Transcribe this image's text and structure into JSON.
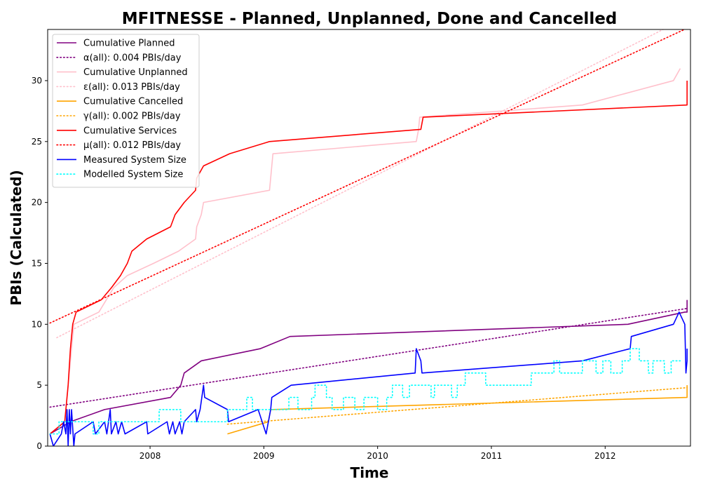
{
  "chart_data": {
    "type": "line",
    "title": "MFITNESSE - Planned, Unplanned, Done  and Cancelled",
    "xlabel": "Time",
    "ylabel": "PBIs (Calculated)",
    "xlim": [
      2007.1,
      2012.75
    ],
    "ylim": [
      0,
      34.2
    ],
    "x_ticks": [
      {
        "value": 2008,
        "label": "2008"
      },
      {
        "value": 2009,
        "label": "2009"
      },
      {
        "value": 2010,
        "label": "2010"
      },
      {
        "value": 2011,
        "label": "2011"
      },
      {
        "value": 2012,
        "label": "2012"
      }
    ],
    "y_ticks": [
      {
        "value": 0,
        "label": "0"
      },
      {
        "value": 5,
        "label": "5"
      },
      {
        "value": 10,
        "label": "10"
      },
      {
        "value": 15,
        "label": "15"
      },
      {
        "value": 20,
        "label": "20"
      },
      {
        "value": 25,
        "label": "25"
      },
      {
        "value": 30,
        "label": "30"
      }
    ],
    "grid": false,
    "legend_position": "top-left",
    "series": [
      {
        "name": "Cumulative Planned",
        "color": "#800080",
        "style": "solid",
        "points": [
          [
            2007.12,
            1
          ],
          [
            2007.3,
            2
          ],
          [
            2007.6,
            3
          ],
          [
            2008.18,
            4
          ],
          [
            2008.27,
            5
          ],
          [
            2008.3,
            6
          ],
          [
            2008.45,
            7
          ],
          [
            2008.97,
            8
          ],
          [
            2009.23,
            9
          ],
          [
            2012.2,
            10
          ],
          [
            2012.7,
            11
          ],
          [
            2012.72,
            11
          ],
          [
            2012.72,
            12
          ]
        ]
      },
      {
        "name": "α(all): 0.004 PBIs/day",
        "color": "#800080",
        "style": "dotted",
        "points": [
          [
            2007.12,
            3.2
          ],
          [
            2012.72,
            11.3
          ]
        ]
      },
      {
        "name": "Cumulative Unplanned",
        "color": "#ffc0cb",
        "style": "solid",
        "points": [
          [
            2007.12,
            1
          ],
          [
            2007.25,
            2
          ],
          [
            2007.3,
            7
          ],
          [
            2007.33,
            10
          ],
          [
            2007.55,
            11
          ],
          [
            2007.68,
            13
          ],
          [
            2007.8,
            14
          ],
          [
            2008.03,
            15
          ],
          [
            2008.25,
            16
          ],
          [
            2008.4,
            17
          ],
          [
            2008.41,
            18
          ],
          [
            2008.45,
            19
          ],
          [
            2008.47,
            20
          ],
          [
            2009.05,
            21
          ],
          [
            2009.06,
            22
          ],
          [
            2009.07,
            23
          ],
          [
            2009.08,
            24
          ],
          [
            2010.34,
            25
          ],
          [
            2010.36,
            26
          ],
          [
            2010.37,
            27
          ],
          [
            2011.8,
            28
          ],
          [
            2012.6,
            30
          ],
          [
            2012.66,
            31
          ]
        ]
      },
      {
        "name": "ε(all): 0.013 PBIs/day",
        "color": "#ffc0cb",
        "style": "dotted",
        "points": [
          [
            2007.18,
            8.9
          ],
          [
            2012.72,
            35.2
          ]
        ]
      },
      {
        "name": "Cumulative Cancelled",
        "color": "#ffa500",
        "style": "solid",
        "points": [
          [
            2008.68,
            1
          ],
          [
            2009.04,
            2
          ],
          [
            2009.06,
            3
          ],
          [
            2012.72,
            4
          ],
          [
            2012.72,
            5
          ]
        ]
      },
      {
        "name": "γ(all): 0.002 PBIs/day",
        "color": "#ffa500",
        "style": "dotted",
        "points": [
          [
            2008.68,
            1.8
          ],
          [
            2012.72,
            4.8
          ]
        ]
      },
      {
        "name": "Cumulative Services",
        "color": "#ff0000",
        "style": "solid",
        "points": [
          [
            2007.12,
            1
          ],
          [
            2007.25,
            2
          ],
          [
            2007.28,
            5
          ],
          [
            2007.3,
            8
          ],
          [
            2007.32,
            10
          ],
          [
            2007.35,
            11
          ],
          [
            2007.57,
            12
          ],
          [
            2007.66,
            13
          ],
          [
            2007.74,
            14
          ],
          [
            2007.8,
            15
          ],
          [
            2007.84,
            16
          ],
          [
            2007.97,
            17
          ],
          [
            2008.18,
            18
          ],
          [
            2008.22,
            19
          ],
          [
            2008.3,
            20
          ],
          [
            2008.4,
            21
          ],
          [
            2008.41,
            22
          ],
          [
            2008.47,
            23
          ],
          [
            2008.7,
            24
          ],
          [
            2009.05,
            25
          ],
          [
            2010.38,
            26
          ],
          [
            2010.4,
            27
          ],
          [
            2012.72,
            28
          ],
          [
            2012.72,
            30
          ]
        ]
      },
      {
        "name": "μ(all): 0.012 PBIs/day",
        "color": "#ff0000",
        "style": "dotted",
        "points": [
          [
            2007.12,
            10.1
          ],
          [
            2012.72,
            34.3
          ]
        ]
      },
      {
        "name": "Measured System Size",
        "color": "#0000ff",
        "style": "solid",
        "points": [
          [
            2007.12,
            1
          ],
          [
            2007.15,
            0
          ],
          [
            2007.22,
            1
          ],
          [
            2007.24,
            2
          ],
          [
            2007.26,
            1
          ],
          [
            2007.27,
            3
          ],
          [
            2007.28,
            0
          ],
          [
            2007.29,
            3
          ],
          [
            2007.3,
            1
          ],
          [
            2007.31,
            3
          ],
          [
            2007.33,
            0
          ],
          [
            2007.34,
            1
          ],
          [
            2007.5,
            2
          ],
          [
            2007.52,
            1
          ],
          [
            2007.6,
            2
          ],
          [
            2007.62,
            1
          ],
          [
            2007.65,
            3
          ],
          [
            2007.66,
            1
          ],
          [
            2007.7,
            2
          ],
          [
            2007.72,
            1
          ],
          [
            2007.75,
            2
          ],
          [
            2007.78,
            1
          ],
          [
            2007.97,
            2
          ],
          [
            2007.98,
            1
          ],
          [
            2008.15,
            2
          ],
          [
            2008.17,
            1
          ],
          [
            2008.2,
            2
          ],
          [
            2008.22,
            1
          ],
          [
            2008.26,
            2
          ],
          [
            2008.28,
            1
          ],
          [
            2008.3,
            2
          ],
          [
            2008.4,
            3
          ],
          [
            2008.41,
            2
          ],
          [
            2008.44,
            3
          ],
          [
            2008.47,
            5
          ],
          [
            2008.48,
            4
          ],
          [
            2008.68,
            3
          ],
          [
            2008.69,
            2
          ],
          [
            2008.95,
            3
          ],
          [
            2009.02,
            1
          ],
          [
            2009.06,
            3
          ],
          [
            2009.07,
            4
          ],
          [
            2009.24,
            5
          ],
          [
            2010.33,
            6
          ],
          [
            2010.34,
            8
          ],
          [
            2010.38,
            7
          ],
          [
            2010.39,
            6
          ],
          [
            2011.8,
            7
          ],
          [
            2012.22,
            8
          ],
          [
            2012.23,
            9
          ],
          [
            2012.6,
            10
          ],
          [
            2012.65,
            11
          ],
          [
            2012.7,
            10
          ],
          [
            2012.71,
            6
          ],
          [
            2012.72,
            7
          ],
          [
            2012.72,
            8
          ]
        ]
      },
      {
        "name": "Modelled System Size",
        "color": "#00ffff",
        "style": "dotted",
        "points": [
          [
            2007.12,
            1
          ],
          [
            2007.2,
            1
          ],
          [
            2007.2,
            2
          ],
          [
            2007.5,
            2
          ],
          [
            2007.5,
            1
          ],
          [
            2007.55,
            1
          ],
          [
            2007.55,
            2
          ],
          [
            2008.08,
            2
          ],
          [
            2008.08,
            3
          ],
          [
            2008.27,
            3
          ],
          [
            2008.27,
            2
          ],
          [
            2008.68,
            2
          ],
          [
            2008.68,
            3
          ],
          [
            2008.85,
            3
          ],
          [
            2008.85,
            4
          ],
          [
            2008.9,
            4
          ],
          [
            2008.9,
            3
          ],
          [
            2009.22,
            3
          ],
          [
            2009.22,
            4
          ],
          [
            2009.3,
            4
          ],
          [
            2009.3,
            3
          ],
          [
            2009.42,
            3
          ],
          [
            2009.42,
            4
          ],
          [
            2009.45,
            4
          ],
          [
            2009.45,
            5
          ],
          [
            2009.55,
            5
          ],
          [
            2009.55,
            4
          ],
          [
            2009.6,
            4
          ],
          [
            2009.6,
            3
          ],
          [
            2009.7,
            3
          ],
          [
            2009.7,
            4
          ],
          [
            2009.8,
            4
          ],
          [
            2009.8,
            3
          ],
          [
            2009.88,
            3
          ],
          [
            2009.88,
            4
          ],
          [
            2010.0,
            4
          ],
          [
            2010.0,
            3
          ],
          [
            2010.08,
            3
          ],
          [
            2010.08,
            4
          ],
          [
            2010.13,
            4
          ],
          [
            2010.13,
            5
          ],
          [
            2010.22,
            5
          ],
          [
            2010.22,
            4
          ],
          [
            2010.28,
            4
          ],
          [
            2010.28,
            5
          ],
          [
            2010.47,
            5
          ],
          [
            2010.47,
            4
          ],
          [
            2010.5,
            4
          ],
          [
            2010.5,
            5
          ],
          [
            2010.65,
            5
          ],
          [
            2010.65,
            4
          ],
          [
            2010.7,
            4
          ],
          [
            2010.7,
            5
          ],
          [
            2010.77,
            5
          ],
          [
            2010.77,
            6
          ],
          [
            2010.95,
            6
          ],
          [
            2010.95,
            5
          ],
          [
            2011.35,
            5
          ],
          [
            2011.35,
            6
          ],
          [
            2011.55,
            6
          ],
          [
            2011.55,
            7
          ],
          [
            2011.6,
            7
          ],
          [
            2011.6,
            6
          ],
          [
            2011.8,
            6
          ],
          [
            2011.8,
            7
          ],
          [
            2011.92,
            7
          ],
          [
            2011.92,
            6
          ],
          [
            2011.98,
            6
          ],
          [
            2011.98,
            7
          ],
          [
            2012.05,
            7
          ],
          [
            2012.05,
            6
          ],
          [
            2012.15,
            6
          ],
          [
            2012.15,
            7
          ],
          [
            2012.22,
            7
          ],
          [
            2012.22,
            8
          ],
          [
            2012.3,
            8
          ],
          [
            2012.3,
            7
          ],
          [
            2012.38,
            7
          ],
          [
            2012.38,
            6
          ],
          [
            2012.42,
            6
          ],
          [
            2012.42,
            7
          ],
          [
            2012.52,
            7
          ],
          [
            2012.52,
            6
          ],
          [
            2012.58,
            6
          ],
          [
            2012.58,
            7
          ],
          [
            2012.66,
            7
          ]
        ]
      }
    ]
  }
}
